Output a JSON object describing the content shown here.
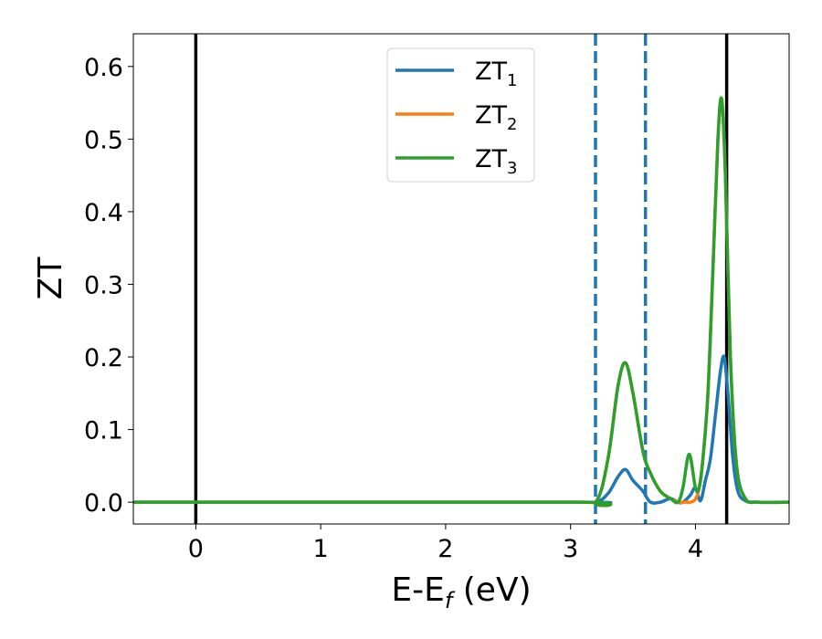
{
  "chart_data": {
    "type": "line",
    "xlabel": "E-E",
    "xlabel_sub": "f",
    "xlabel_unit": " (eV)",
    "ylabel": "ZT",
    "xlim": [
      -0.5,
      4.75
    ],
    "ylim": [
      -0.03,
      0.645
    ],
    "xticks": [
      0,
      1,
      2,
      3,
      4
    ],
    "xtick_labels": [
      "0",
      "1",
      "2",
      "3",
      "4"
    ],
    "yticks": [
      0.0,
      0.1,
      0.2,
      0.3,
      0.4,
      0.5,
      0.6
    ],
    "ytick_labels": [
      "0.0",
      "0.1",
      "0.2",
      "0.3",
      "0.4",
      "0.5",
      "0.6"
    ],
    "grid": false,
    "legend_position": "top-center",
    "vlines": [
      {
        "x": 0.0,
        "style": "solid",
        "color": "#000000"
      },
      {
        "x": 4.25,
        "style": "solid",
        "color": "#000000"
      },
      {
        "x": 3.2,
        "style": "dashed",
        "color": "#1f77b4"
      },
      {
        "x": 3.6,
        "style": "dashed",
        "color": "#1f77b4"
      }
    ],
    "series": [
      {
        "name": "ZT",
        "name_sub": "1",
        "color": "#1f77b4",
        "x": [
          -0.5,
          3.0,
          3.2,
          3.3,
          3.38,
          3.44,
          3.5,
          3.58,
          3.64,
          3.72,
          3.8,
          3.86,
          3.9,
          3.96,
          4.0,
          4.04,
          4.08,
          4.12,
          4.16,
          4.2,
          4.23,
          4.26,
          4.3,
          4.34,
          4.4,
          4.5,
          4.75
        ],
        "y": [
          0.0,
          0.0,
          0.0,
          0.012,
          0.035,
          0.045,
          0.03,
          0.015,
          0.0,
          0.0,
          0.005,
          0.0,
          0.0,
          0.01,
          0.02,
          0.002,
          0.03,
          0.06,
          0.12,
          0.18,
          0.2,
          0.15,
          0.06,
          0.015,
          0.002,
          0.0,
          0.0
        ]
      },
      {
        "name": "ZT",
        "name_sub": "2",
        "color": "#ff7f0e",
        "x": [
          -0.5,
          3.0,
          3.2,
          3.3,
          3.38,
          3.44,
          3.5,
          3.58,
          3.64,
          3.72,
          3.8,
          3.86,
          3.9,
          3.93,
          3.96,
          4.0,
          4.03,
          4.06,
          4.1,
          4.14,
          4.18,
          4.21,
          4.24,
          4.28,
          4.33,
          4.4,
          4.5,
          4.75
        ],
        "y": [
          0.0,
          0.0,
          0.0,
          0.06,
          0.16,
          0.192,
          0.15,
          0.07,
          0.04,
          0.015,
          0.005,
          0.0,
          0.0,
          0.0,
          0.0,
          0.004,
          0.02,
          0.06,
          0.15,
          0.32,
          0.5,
          0.555,
          0.45,
          0.2,
          0.05,
          0.005,
          0.0,
          0.0
        ]
      },
      {
        "name": "ZT",
        "name_sub": "3",
        "color": "#2ca02c",
        "x": [
          -0.5,
          3.0,
          3.2,
          3.3,
          3.38,
          3.44,
          3.5,
          3.58,
          3.64,
          3.72,
          3.8,
          3.86,
          3.9,
          3.95,
          4.0,
          4.03,
          4.06,
          4.1,
          4.14,
          4.18,
          4.21,
          4.24,
          4.28,
          4.33,
          4.4,
          4.5,
          4.75
        ],
        "y": [
          0.0,
          0.0,
          0.0,
          0.06,
          0.16,
          0.192,
          0.15,
          0.07,
          0.04,
          0.015,
          0.005,
          0.0,
          0.02,
          0.066,
          0.02,
          0.02,
          0.06,
          0.15,
          0.32,
          0.5,
          0.555,
          0.45,
          0.2,
          0.05,
          0.005,
          0.0,
          0.0
        ]
      }
    ]
  }
}
